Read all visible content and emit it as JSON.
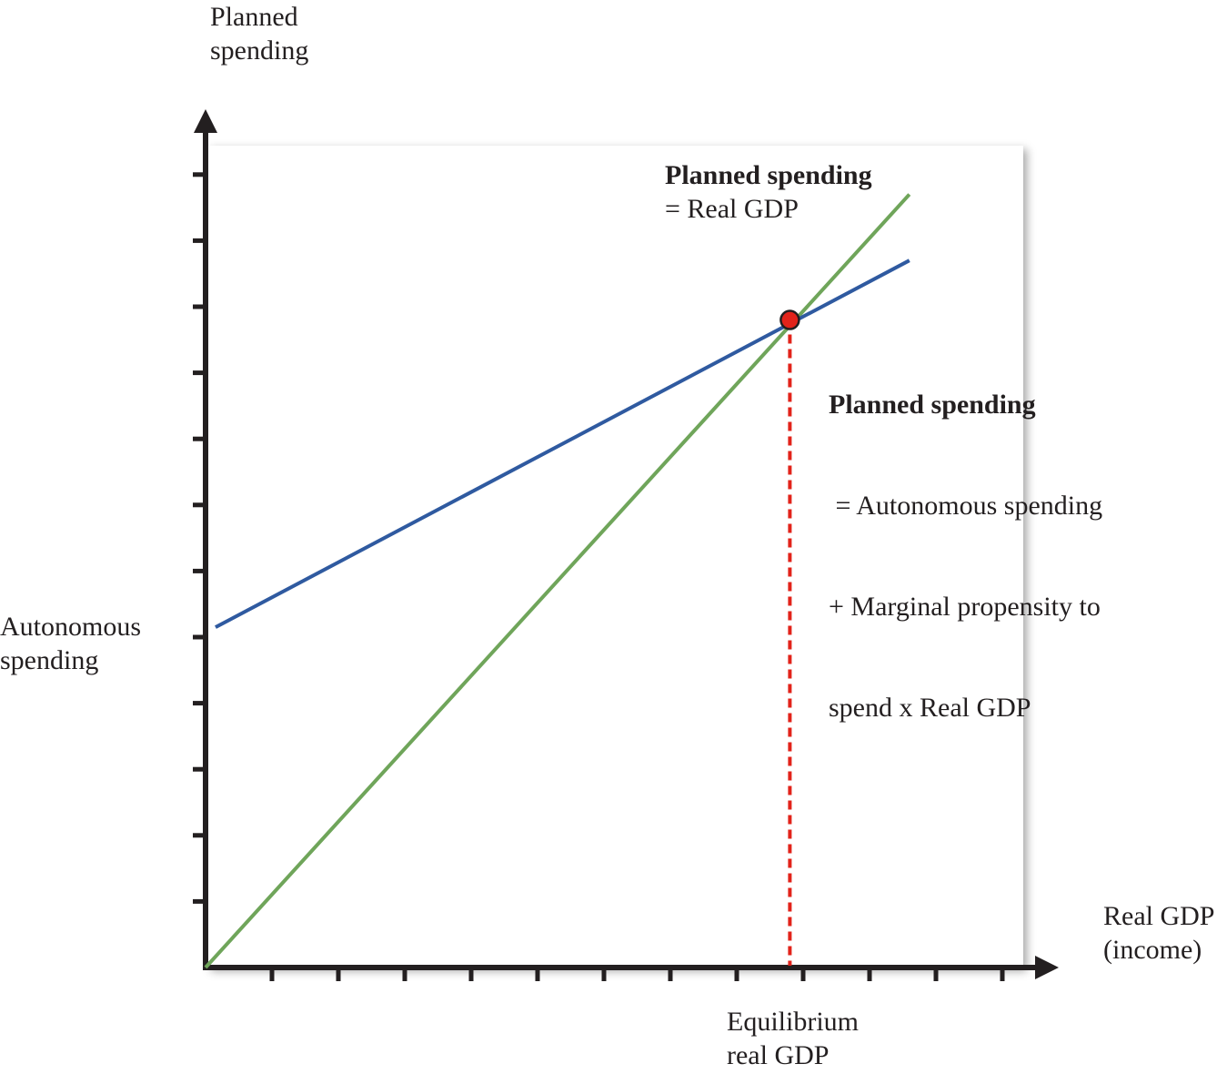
{
  "chart_data": {
    "type": "line",
    "title": "",
    "ylabel": [
      "Planned",
      "spending"
    ],
    "xlabel": [
      "Real GDP",
      "(income)"
    ],
    "xlim": [
      0,
      12.5
    ],
    "ylim": [
      0,
      12.6
    ],
    "x_ticks": [
      1,
      2,
      3,
      4,
      5,
      6,
      7,
      8,
      9,
      10,
      11,
      12
    ],
    "y_ticks": [
      1,
      2,
      3,
      4,
      5,
      6,
      7,
      8,
      9,
      10,
      11,
      12
    ],
    "series": [
      {
        "name": "Planned spending = Real GDP",
        "color": "#6fa55a",
        "points": [
          [
            0,
            0
          ],
          [
            10.6,
            11.7
          ]
        ]
      },
      {
        "name": "Planned spending = Autonomous spending + Marginal propensity to spend x Real GDP",
        "color": "#2f5aa0",
        "points": [
          [
            0.15,
            5.15
          ],
          [
            10.6,
            10.7
          ]
        ]
      }
    ],
    "equilibrium": {
      "x": 8.8,
      "y": 9.8,
      "color": "#e2231a",
      "line_color": "#e2231a"
    },
    "annotations": {
      "green_label": {
        "bold": "Planned spending",
        "rest": [
          "= Real GDP"
        ]
      },
      "blue_label": {
        "bold": "Planned spending",
        "rest": [
          " = Autonomous spending",
          "+ Marginal propensity to",
          "spend x Real GDP"
        ]
      },
      "autonomous": [
        "Autonomous",
        "spending"
      ],
      "equilibrium": [
        "Equilibrium",
        "real GDP"
      ]
    },
    "grid": false,
    "legend": "none"
  }
}
